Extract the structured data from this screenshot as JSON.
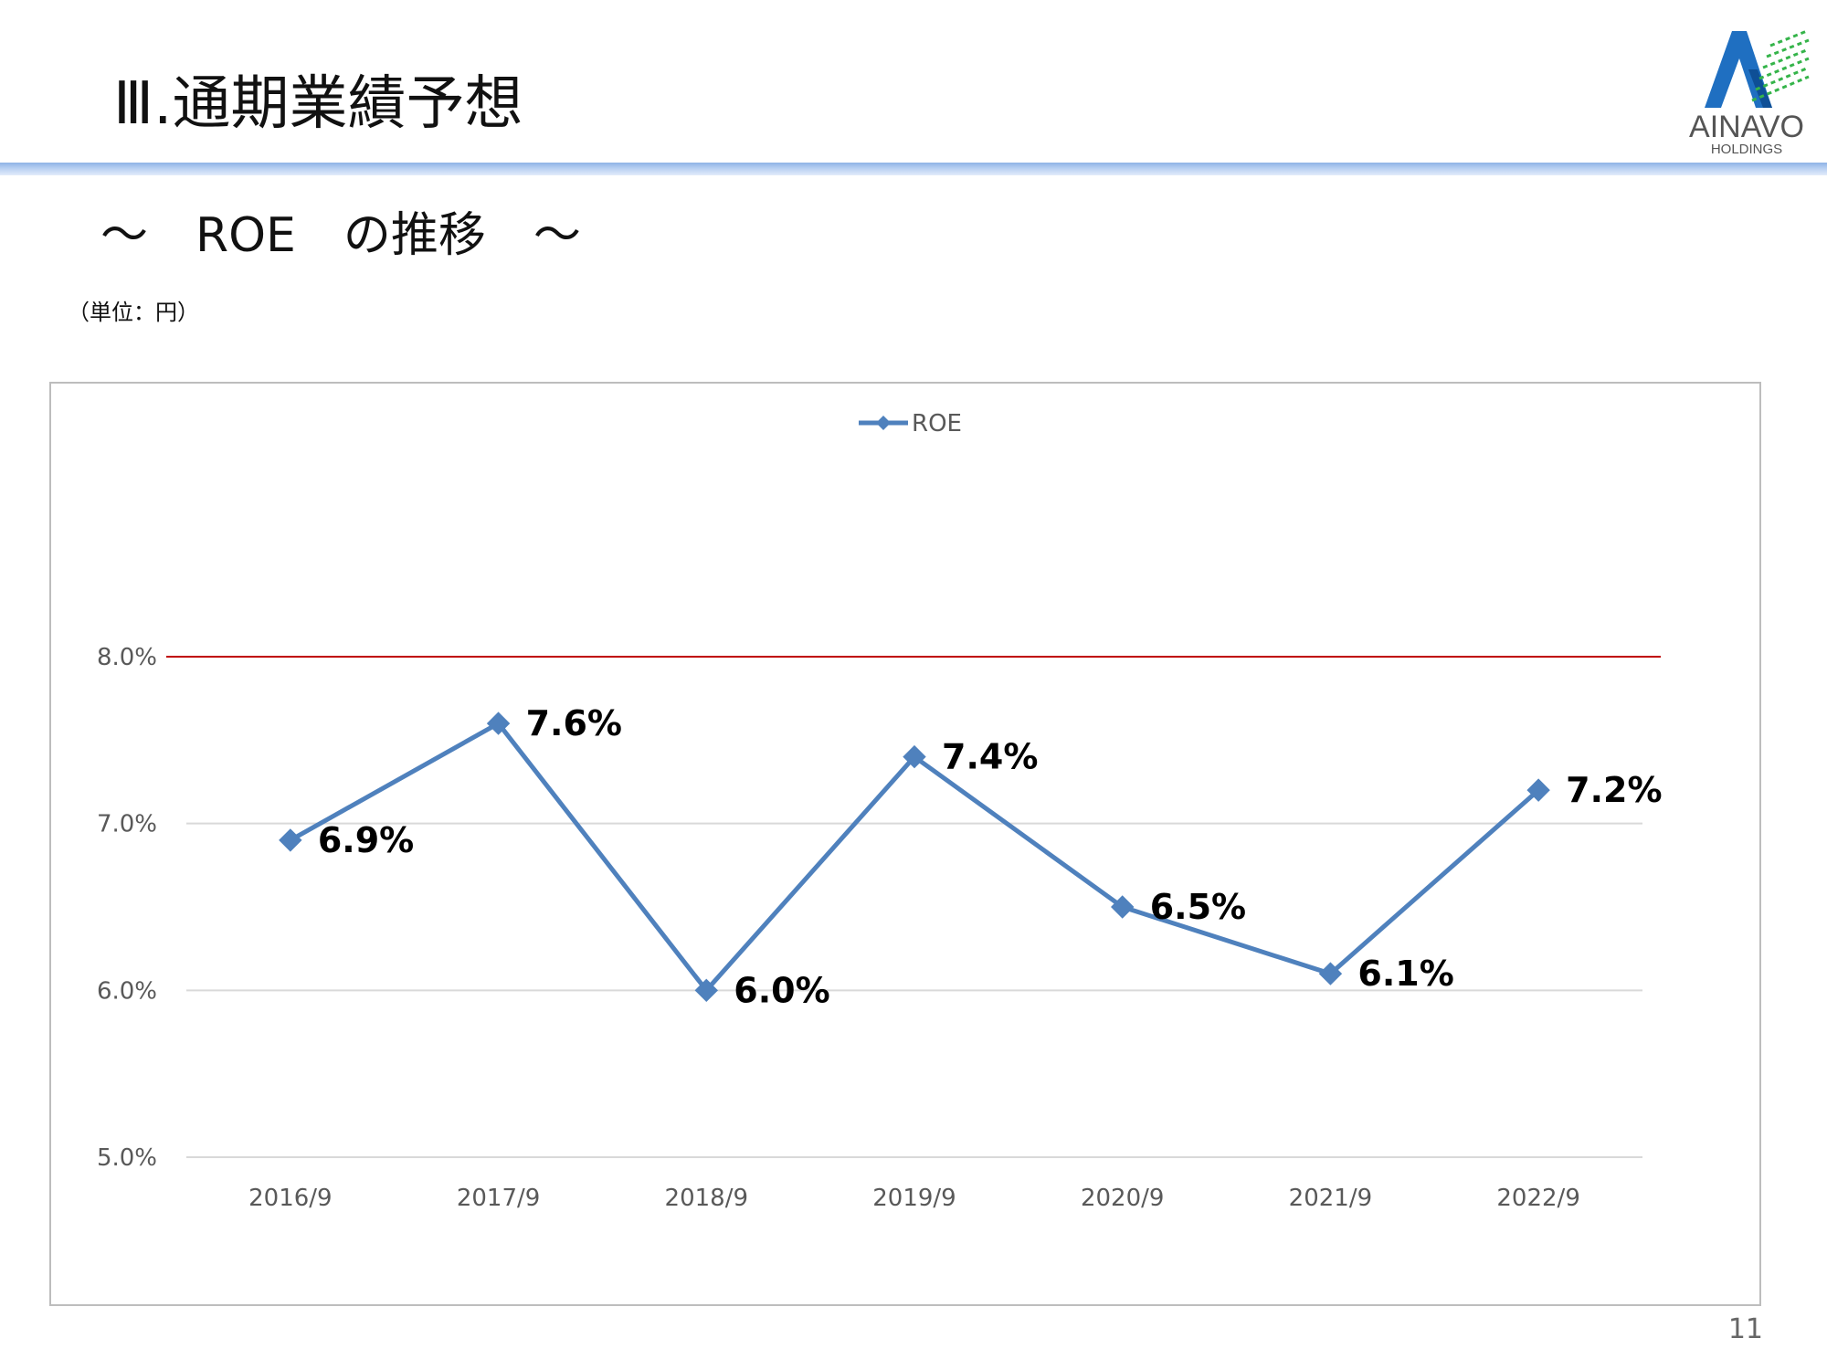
{
  "header": {
    "title": "Ⅲ.通期業績予想"
  },
  "logo": {
    "name": "AINAVO",
    "sub": "HOLDINGS",
    "colors": {
      "blue": "#1f6fc1",
      "green": "#35b44a",
      "text": "#555555"
    }
  },
  "subtitle": "～　ROE　の推移　～",
  "unit_note": "（単位：円）",
  "page_number": "11",
  "colors": {
    "series": "#4f81bd",
    "target_line": "#c00000",
    "grid": "#d9d9d9",
    "axis_text": "#595959",
    "label_text": "#000000"
  },
  "chart_data": {
    "type": "line",
    "categories": [
      "2016/9",
      "2017/9",
      "2018/9",
      "2019/9",
      "2020/9",
      "2021/9",
      "2022/9"
    ],
    "series": [
      {
        "name": "ROE",
        "values": [
          6.9,
          7.6,
          6.0,
          7.4,
          6.5,
          6.1,
          7.2
        ],
        "labels": [
          "6.9%",
          "7.6%",
          "6.0%",
          "7.4%",
          "6.5%",
          "6.1%",
          "7.2%"
        ],
        "marker": "diamond"
      }
    ],
    "yticks": [
      5.0,
      6.0,
      7.0,
      8.0
    ],
    "ytick_labels": [
      "5.0%",
      "6.0%",
      "7.0%",
      "8.0%"
    ],
    "ylim": [
      5.0,
      8.0
    ],
    "reference_line": 8.0,
    "grid": true,
    "legend_position": "top-center"
  }
}
